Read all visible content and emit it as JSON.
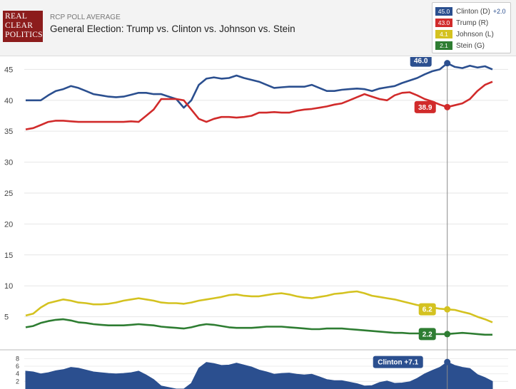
{
  "header": {
    "logo_lines": [
      "REAL",
      "CLEAR",
      "POLITICS"
    ],
    "kicker": "RCP POLL AVERAGE",
    "title": "General Election: Trump vs. Clinton vs. Johnson vs. Stein"
  },
  "legend": {
    "items": [
      {
        "value": "45.0",
        "name": "Clinton (D)",
        "change": "+2.0",
        "color": "#2b4f8f"
      },
      {
        "value": "43.0",
        "name": "Trump (R)",
        "change": "",
        "color": "#d12b2b"
      },
      {
        "value": "4.1",
        "name": "Johnson (L)",
        "change": "",
        "color": "#d4c220"
      },
      {
        "value": "2.1",
        "name": "Stein (G)",
        "change": "",
        "color": "#2e7d32"
      }
    ]
  },
  "chart_data": {
    "type": "line",
    "title": "General Election: Trump vs. Clinton vs. Johnson vs. Stein",
    "ylim": [
      0,
      47
    ],
    "yticks": [
      "5",
      "10",
      "15",
      "20",
      "25",
      "30",
      "35",
      "40",
      "45"
    ],
    "grid": true,
    "legend_position": "top-right",
    "series": [
      {
        "name": "Clinton (D)",
        "color": "#2b4f8f",
        "values": [
          40,
          40,
          40,
          40.8,
          41.5,
          41.8,
          42.3,
          42,
          41.5,
          41,
          40.8,
          40.6,
          40.5,
          40.6,
          40.9,
          41.2,
          41.2,
          41,
          41,
          40.6,
          40.2,
          38.8,
          40,
          42.5,
          43.5,
          43.7,
          43.5,
          43.6,
          44,
          43.6,
          43.3,
          43,
          42.5,
          42,
          42.1,
          42.2,
          42.2,
          42.2,
          42.5,
          42,
          41.5,
          41.5,
          41.7,
          41.8,
          41.9,
          41.8,
          41.5,
          41.9,
          42.1,
          42.3,
          42.8,
          43.2,
          43.6,
          44.2,
          44.7,
          45,
          46,
          45.4,
          45.2,
          45.6,
          45.3,
          45.5,
          45
        ]
      },
      {
        "name": "Trump (R)",
        "color": "#d12b2b",
        "values": [
          35.3,
          35.5,
          36,
          36.5,
          36.7,
          36.7,
          36.6,
          36.5,
          36.5,
          36.5,
          36.5,
          36.5,
          36.5,
          36.5,
          36.6,
          36.5,
          37.5,
          38.5,
          40.2,
          40.2,
          40.2,
          40,
          38.5,
          37,
          36.5,
          37,
          37.3,
          37.3,
          37.2,
          37.3,
          37.5,
          38,
          38,
          38.1,
          38,
          38,
          38.3,
          38.5,
          38.6,
          38.8,
          39,
          39.3,
          39.5,
          40,
          40.5,
          41,
          40.6,
          40.2,
          40,
          40.8,
          41.2,
          41.3,
          40.8,
          40.2,
          39.8,
          39.3,
          38.9,
          39.2,
          39.5,
          40.2,
          41.5,
          42.5,
          43
        ]
      },
      {
        "name": "Johnson (L)",
        "color": "#d4c220",
        "values": [
          5.2,
          5.5,
          6.5,
          7.2,
          7.5,
          7.8,
          7.6,
          7.3,
          7.2,
          7,
          7,
          7.1,
          7.3,
          7.6,
          7.8,
          8,
          7.8,
          7.6,
          7.3,
          7.2,
          7.2,
          7.1,
          7.3,
          7.6,
          7.8,
          8,
          8.2,
          8.5,
          8.6,
          8.4,
          8.3,
          8.3,
          8.5,
          8.7,
          8.8,
          8.6,
          8.3,
          8.1,
          8,
          8.2,
          8.4,
          8.7,
          8.8,
          9,
          9.1,
          8.8,
          8.4,
          8.2,
          8,
          7.8,
          7.5,
          7.2,
          6.9,
          6.7,
          6.5,
          6.3,
          6.2,
          6.1,
          5.8,
          5.5,
          5,
          4.6,
          4.1
        ]
      },
      {
        "name": "Stein (G)",
        "color": "#2e7d32",
        "values": [
          3.3,
          3.5,
          4,
          4.3,
          4.5,
          4.6,
          4.4,
          4.1,
          4,
          3.8,
          3.7,
          3.6,
          3.6,
          3.6,
          3.7,
          3.8,
          3.7,
          3.6,
          3.4,
          3.3,
          3.2,
          3.1,
          3.3,
          3.6,
          3.8,
          3.7,
          3.5,
          3.3,
          3.2,
          3.2,
          3.2,
          3.3,
          3.4,
          3.4,
          3.4,
          3.3,
          3.2,
          3.1,
          3,
          3,
          3.1,
          3.1,
          3.1,
          3,
          2.9,
          2.8,
          2.7,
          2.6,
          2.5,
          2.4,
          2.4,
          2.3,
          2.3,
          2.3,
          2.2,
          2.2,
          2.2,
          2.3,
          2.4,
          2.3,
          2.2,
          2.1,
          2.1
        ]
      }
    ],
    "spread": {
      "label": "Clinton +7.1",
      "color": "#2b4f8f",
      "ylim": [
        0,
        9
      ],
      "yticks": [
        "2",
        "4",
        "6",
        "8"
      ],
      "values": [
        4.7,
        4.5,
        4,
        4.3,
        4.8,
        5.1,
        5.7,
        5.5,
        5,
        4.5,
        4.3,
        4.1,
        4,
        4.1,
        4.3,
        4.7,
        3.7,
        2.5,
        0.8,
        0.4,
        0,
        -1.2,
        1.5,
        5.5,
        7,
        6.7,
        6.2,
        6.3,
        6.8,
        6.3,
        5.8,
        5,
        4.5,
        3.9,
        4.1,
        4.2,
        3.9,
        3.7,
        3.9,
        3.2,
        2.5,
        2.2,
        2.2,
        1.8,
        1.4,
        0.8,
        0.9,
        1.7,
        2.1,
        1.5,
        1.6,
        1.9,
        2.8,
        4,
        4.9,
        5.7,
        7.1,
        6.2,
        5.7,
        5.4,
        3.8,
        3,
        2
      ]
    },
    "hover": {
      "index": 56,
      "labels": [
        {
          "series": "Clinton (D)",
          "text": "46.0"
        },
        {
          "series": "Trump (R)",
          "text": "38.9"
        },
        {
          "series": "Johnson (L)",
          "text": "6.2"
        },
        {
          "series": "Stein (G)",
          "text": "2.2"
        }
      ]
    }
  }
}
